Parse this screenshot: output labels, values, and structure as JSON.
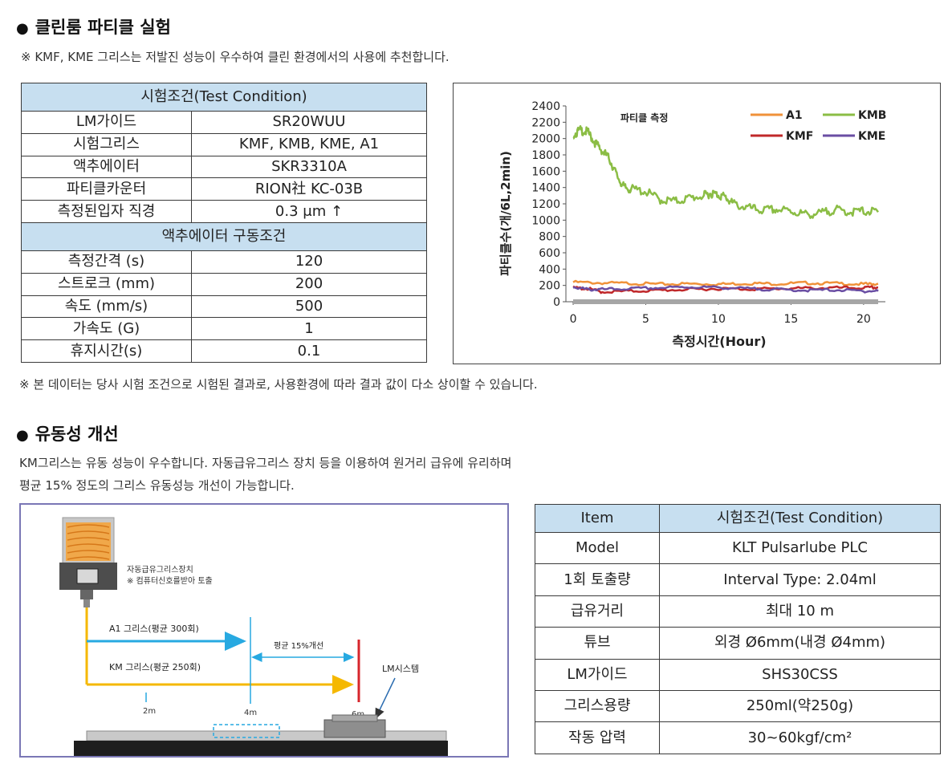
{
  "section1": {
    "title": "클린룸 파티클 실험",
    "desc": "※ KMF, KME 그리스는 저발진 성능이 우수하여 클린 환경에서의 사용에 추천합니다.",
    "footnote": "※ 본 데이터는 당사 시험 조건으로 시험된 결과로, 사용환경에 따라 결과 값이 다소 상이할 수 있습니다."
  },
  "table1": {
    "header1": "시험조건(Test Condition)",
    "rows1": [
      [
        "LM가이드",
        "SR20WUU"
      ],
      [
        "시험그리스",
        "KMF, KMB, KME, A1"
      ],
      [
        "액추에이터",
        "SKR3310A"
      ],
      [
        "파티클카운터",
        "RION社 KC-03B"
      ],
      [
        "측정된입자 직경",
        "0.3 μm ↑"
      ]
    ],
    "header2": "액추에이터 구동조건",
    "rows2": [
      [
        "측정간격 (s)",
        "120"
      ],
      [
        "스트로크 (mm)",
        "200"
      ],
      [
        "속도 (mm/s)",
        "500"
      ],
      [
        "가속도 (G)",
        "1"
      ],
      [
        "휴지시간(s)",
        "0.1"
      ]
    ]
  },
  "chart_data": {
    "type": "line",
    "title": "파티클 측정",
    "xlabel": "측정시간(Hour)",
    "ylabel": "파티클수(개/6L,2min)",
    "xlim": [
      -0.5,
      21.5
    ],
    "ylim": [
      0,
      2400
    ],
    "xticks": [
      "0",
      "5",
      "10",
      "15",
      "20"
    ],
    "yticks": [
      "0",
      "200",
      "400",
      "600",
      "800",
      "1000",
      "1200",
      "1400",
      "1600",
      "1800",
      "2000",
      "2200",
      "2400"
    ],
    "grid": false,
    "legend": "top-right",
    "series": [
      {
        "name": "A1",
        "color": "#f0923a",
        "x": [
          0,
          2,
          4,
          6,
          8,
          10,
          12,
          14,
          16,
          18,
          20,
          21
        ],
        "values": [
          240,
          230,
          225,
          215,
          220,
          215,
          225,
          220,
          230,
          225,
          215,
          220
        ]
      },
      {
        "name": "KMB",
        "color": "#8bbd45",
        "x": [
          0,
          0.5,
          1,
          1.5,
          2,
          2.5,
          3,
          3.5,
          4,
          5,
          6,
          7,
          8,
          9,
          9.5,
          10,
          10.5,
          11,
          12,
          13,
          14,
          15,
          16,
          17,
          18,
          19,
          20,
          21
        ],
        "values": [
          2050,
          2100,
          2080,
          1950,
          1850,
          1750,
          1550,
          1400,
          1380,
          1350,
          1250,
          1230,
          1270,
          1300,
          1330,
          1310,
          1280,
          1200,
          1150,
          1120,
          1130,
          1110,
          1070,
          1080,
          1130,
          1100,
          1110,
          1100
        ]
      },
      {
        "name": "KMF",
        "color": "#c0282a",
        "x": [
          0,
          1,
          2,
          4,
          6,
          8,
          10,
          12,
          14,
          16,
          18,
          20,
          21
        ],
        "values": [
          170,
          160,
          120,
          130,
          140,
          150,
          160,
          155,
          160,
          165,
          170,
          170,
          175
        ]
      },
      {
        "name": "KME",
        "color": "#6a4ea3",
        "x": [
          0,
          1,
          2,
          4,
          6,
          8,
          10,
          12,
          14,
          16,
          18,
          20,
          21
        ],
        "values": [
          180,
          150,
          150,
          160,
          170,
          180,
          175,
          160,
          150,
          140,
          145,
          130,
          130
        ]
      },
      {
        "x": [
          0,
          21
        ],
        "values": [
          0,
          0
        ],
        "color": "#a6a6a6"
      }
    ]
  },
  "section2": {
    "title": "유동성 개선",
    "desc1": "KM그리스는 유동 성능이 우수합니다.  자동급유그리스 장치 등을 이용하여 원거리 급유에 유리하며",
    "desc2": "평균 15% 정도의 그리스 유동성능 개선이 가능합니다."
  },
  "diagram": {
    "device_label": "자동급유그리스장치",
    "device_note": "※ 컴퓨터신호를받아 토출",
    "a1_label": "A1 그리스(평균 300회)",
    "km_label": "KM 그리스(평균 250회)",
    "improve_label": "평균 15%개선",
    "lm_label": "LM시스템",
    "dist_2m": "2m",
    "dist_4m": "4m",
    "dist_6m": "6m",
    "colors": {
      "a1": "#27a9e1",
      "km": "#f5b800",
      "red": "#d7262c"
    }
  },
  "table2": {
    "header": [
      "Item",
      "시험조건(Test Condition)"
    ],
    "rows": [
      [
        "Model",
        "KLT Pulsarlube PLC"
      ],
      [
        "1회 토출량",
        "Interval Type: 2.04ml"
      ],
      [
        "급유거리",
        "최대 10 m"
      ],
      [
        "튜브",
        "외경 Ø6mm(내경 Ø4mm)"
      ],
      [
        "LM가이드",
        "SHS30CSS"
      ],
      [
        "그리스용량",
        "250ml(약250g)"
      ],
      [
        "작동 압력",
        "30~60kgf/cm²"
      ]
    ]
  }
}
